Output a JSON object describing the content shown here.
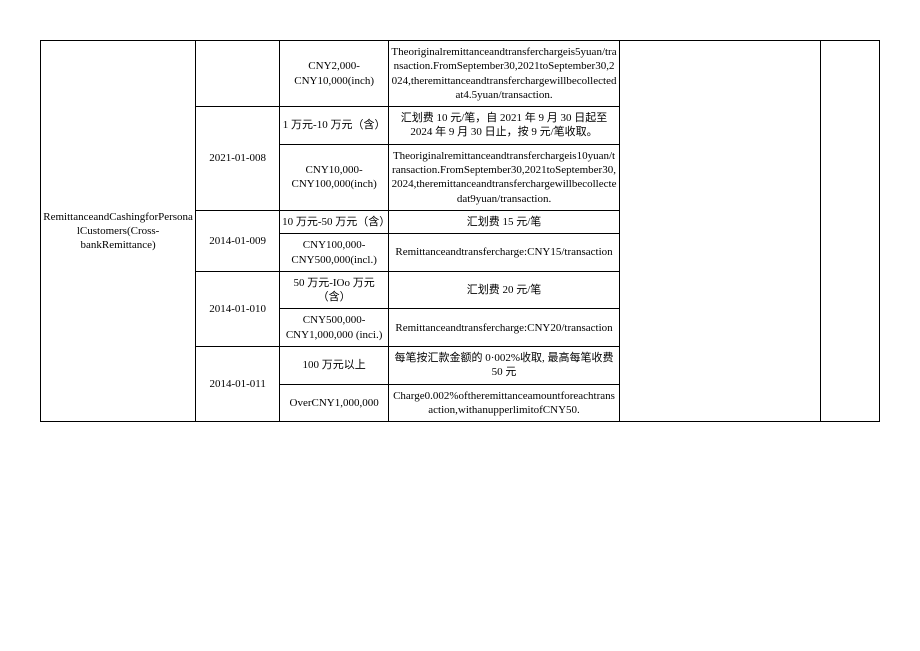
{
  "table": {
    "left_label": "RemittanceandCashingforPersonalCustomers(Cross-bankRemittance)",
    "rows": [
      {
        "code_span": false,
        "code": "",
        "range": "CNY2,000-CNY10,000(inch)",
        "desc": "Theoriginalremittanceandtransferchargeis5yuan/transaction.FromSeptember30,2021toSeptember30,2024,theremittanceandtransferchargewillbecollectedat4.5yuan/transaction."
      },
      {
        "code_span": true,
        "code": "2021-01-008",
        "range": "1 万元-10 万元（含）",
        "desc": "汇划费 10 元/笔，自 2021 年 9 月 30 日起至 2024 年 9 月 30 日止，按 9 元/笔收取。"
      },
      {
        "code_span": false,
        "code": "",
        "range": "CNY10,000-CNY100,000(inch)",
        "desc": "Theoriginalremittanceandtransferchargeis10yuan/transaction.FromSeptember30,2021toSeptember30,2024,theremittanceandtransferchargewillbecollectedat9yuan/transaction."
      },
      {
        "code_span": true,
        "code": "2014-01-009",
        "range": "10 万元-50 万元（含）",
        "desc": "汇划费 15 元/笔"
      },
      {
        "code_span": false,
        "code": "",
        "range": "CNY100,000-CNY500,000(incl.)",
        "desc": "Remittanceandtransfercharge:CNY15/transaction"
      },
      {
        "code_span": true,
        "code": "2014-01-010",
        "range": "50 万元-IOo 万元（含）",
        "desc": "汇划费 20 元/笔"
      },
      {
        "code_span": false,
        "code": "",
        "range": "CNY500,000-CNY1,000,000 (inci.)",
        "desc": "Remittanceandtransfercharge:CNY20/transaction"
      },
      {
        "code_span": true,
        "code": "2014-01-011",
        "range": "100 万元以上",
        "desc": "每笔按汇款金额的 0·002%收取, 最高每笔收费 50 元"
      },
      {
        "code_span": false,
        "code": "",
        "range": "OverCNY1,000,000",
        "desc": "Charge0.002%oftheremittanceamountforeachtransaction,withanupperlimitofCNY50."
      }
    ]
  }
}
